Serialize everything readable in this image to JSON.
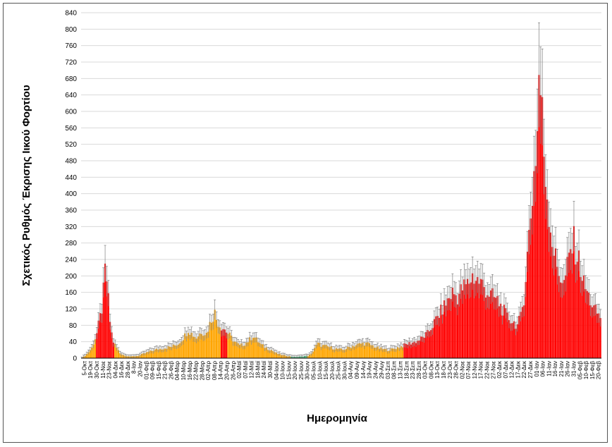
{
  "chart_data": {
    "type": "bar",
    "title": "",
    "xlabel": "Ημερομηνία",
    "ylabel": "Σχετικός Ρυθμός Έκρισης Ιικού Φορτίου",
    "ylim": [
      0,
      840
    ],
    "yticks": [
      0,
      40,
      80,
      120,
      160,
      200,
      240,
      280,
      320,
      360,
      400,
      440,
      480,
      520,
      560,
      600,
      640,
      680,
      720,
      760,
      800,
      840
    ],
    "grid": true,
    "error_bars": true,
    "colors": {
      "high": "#ff0000",
      "medium": "#ffa500",
      "low": "#3cb371",
      "error": "#808080",
      "grid": "#d9d9d9"
    },
    "categories": [
      "5-Οκτ",
      "19-Οκτ",
      "30-Οκτ",
      "11-Νοε",
      "23-Νοε",
      "04-Δεκ",
      "16-Δεκ",
      "28-Δεκ",
      "8-Ιαν",
      "20-Ιαν",
      "01-Φεβ",
      "09-Φεβ",
      "15-Φεβ",
      "21-Φεβ",
      "26-Φεβ",
      "04-Μαρ",
      "10-Μαρ",
      "16-Μαρ",
      "22-Μαρ",
      "28-Μαρ",
      "02-Απρ",
      "08-Απρ",
      "14-Απρ",
      "20-Απρ",
      "26-Απρ",
      "02-Μαϊ",
      "07-Μαϊ",
      "12-Μαϊ",
      "18-Μαϊ",
      "24-Μαϊ",
      "30-Μαϊ",
      "04-Ιουν",
      "10-Ιουν",
      "15-Ιουν",
      "20-Ιουν",
      "25-Ιουν",
      "30-Ιουν",
      "05-Ιουλ",
      "10-Ιουλ",
      "15-Ιουλ",
      "20-Ιουλ",
      "25-Ιουλ",
      "30-Ιουλ",
      "04-Αυγ",
      "09-Αυγ",
      "14-Αυγ",
      "19-Αυγ",
      "24-Αυγ",
      "29-Αυγ",
      "03-Σεπ",
      "08-Σεπ",
      "13-Σεπ",
      "18-Σεπ",
      "23-Σεπ",
      "28-Σεπ",
      "03-Οκτ",
      "08-Οκτ",
      "13-Οκτ",
      "18-Οκτ",
      "23-Οκτ",
      "28-Οκτ",
      "02-Νοε",
      "07-Νοε",
      "12-Νοε",
      "17-Νοε",
      "22-Νοε",
      "27-Νοε",
      "02-Δεκ",
      "07-Δεκ",
      "12-Δεκ",
      "17-Δεκ",
      "22-Δεκ",
      "27-Δεκ",
      "01-Ιαν",
      "06-Ιαν",
      "11-Ιαν",
      "16-Ιαν",
      "21-Ιαν",
      "26-Ιαν",
      "31-Ιαν",
      "05-Φεβ",
      "10-Φεβ",
      "15-Φεβ",
      "20-Φεβ"
    ],
    "anchors": [
      [
        0,
        0
      ],
      [
        3,
        10
      ],
      [
        6,
        25
      ],
      [
        9,
        60
      ],
      [
        12,
        120
      ],
      [
        13,
        160
      ],
      [
        14,
        210
      ],
      [
        15,
        190
      ],
      [
        16,
        140
      ],
      [
        17,
        90
      ],
      [
        18,
        60
      ],
      [
        19,
        40
      ],
      [
        21,
        25
      ],
      [
        23,
        12
      ],
      [
        26,
        6
      ],
      [
        30,
        4
      ],
      [
        34,
        6
      ],
      [
        38,
        12
      ],
      [
        42,
        18
      ],
      [
        46,
        22
      ],
      [
        50,
        25
      ],
      [
        54,
        28
      ],
      [
        58,
        35
      ],
      [
        62,
        55
      ],
      [
        64,
        70
      ],
      [
        66,
        60
      ],
      [
        69,
        50
      ],
      [
        72,
        65
      ],
      [
        75,
        60
      ],
      [
        78,
        95
      ],
      [
        80,
        110
      ],
      [
        81,
        95
      ],
      [
        83,
        80
      ],
      [
        86,
        70
      ],
      [
        89,
        55
      ],
      [
        92,
        40
      ],
      [
        95,
        30
      ],
      [
        98,
        35
      ],
      [
        101,
        45
      ],
      [
        103,
        55
      ],
      [
        105,
        45
      ],
      [
        108,
        32
      ],
      [
        111,
        25
      ],
      [
        114,
        20
      ],
      [
        117,
        12
      ],
      [
        120,
        8
      ],
      [
        124,
        5
      ],
      [
        128,
        3
      ],
      [
        132,
        4
      ],
      [
        136,
        6
      ],
      [
        138,
        10
      ],
      [
        140,
        25
      ],
      [
        142,
        35
      ],
      [
        145,
        30
      ],
      [
        148,
        28
      ],
      [
        151,
        25
      ],
      [
        154,
        22
      ],
      [
        157,
        20
      ],
      [
        160,
        25
      ],
      [
        163,
        30
      ],
      [
        166,
        33
      ],
      [
        169,
        36
      ],
      [
        172,
        35
      ],
      [
        175,
        30
      ],
      [
        178,
        25
      ],
      [
        181,
        22
      ],
      [
        184,
        20
      ],
      [
        187,
        22
      ],
      [
        190,
        26
      ],
      [
        193,
        30
      ],
      [
        196,
        35
      ],
      [
        199,
        38
      ],
      [
        202,
        42
      ],
      [
        205,
        50
      ],
      [
        208,
        60
      ],
      [
        211,
        80
      ],
      [
        214,
        100
      ],
      [
        217,
        120
      ],
      [
        220,
        140
      ],
      [
        223,
        160
      ],
      [
        226,
        150
      ],
      [
        229,
        170
      ],
      [
        232,
        180
      ],
      [
        235,
        200
      ],
      [
        238,
        190
      ],
      [
        241,
        180
      ],
      [
        244,
        160
      ],
      [
        247,
        150
      ],
      [
        250,
        140
      ],
      [
        253,
        120
      ],
      [
        256,
        100
      ],
      [
        259,
        90
      ],
      [
        262,
        80
      ],
      [
        264,
        100
      ],
      [
        266,
        150
      ],
      [
        268,
        250
      ],
      [
        270,
        350
      ],
      [
        272,
        450
      ],
      [
        274,
        550
      ],
      [
        275,
        690
      ],
      [
        276,
        650
      ],
      [
        277,
        580
      ],
      [
        278,
        500
      ],
      [
        280,
        400
      ],
      [
        282,
        320
      ],
      [
        284,
        260
      ],
      [
        286,
        220
      ],
      [
        288,
        200
      ],
      [
        290,
        180
      ],
      [
        292,
        220
      ],
      [
        294,
        260
      ],
      [
        296,
        280
      ],
      [
        298,
        250
      ],
      [
        300,
        220
      ],
      [
        302,
        180
      ],
      [
        304,
        160
      ],
      [
        306,
        140
      ],
      [
        308,
        120
      ],
      [
        310,
        110
      ],
      [
        312,
        100
      ]
    ],
    "color_segments": [
      {
        "from": 0,
        "to": 9,
        "level": "medium"
      },
      {
        "from": 9,
        "to": 20,
        "level": "high"
      },
      {
        "from": 20,
        "to": 84,
        "level": "medium"
      },
      {
        "from": 84,
        "to": 88,
        "level": "high"
      },
      {
        "from": 88,
        "to": 126,
        "level": "medium"
      },
      {
        "from": 126,
        "to": 136,
        "level": "low"
      },
      {
        "from": 136,
        "to": 194,
        "level": "medium"
      },
      {
        "from": 194,
        "to": 313,
        "level": "high"
      }
    ],
    "n_bars": 313
  }
}
